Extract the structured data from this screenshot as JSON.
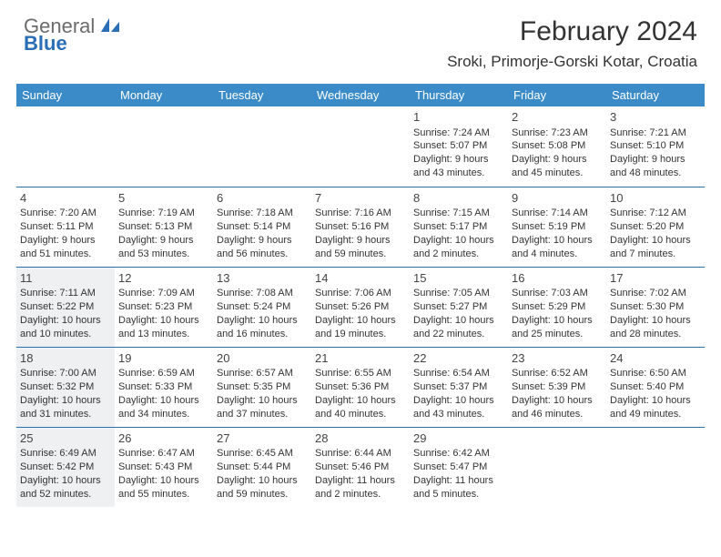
{
  "brand": {
    "part1": "General",
    "part2": "Blue"
  },
  "title": "February 2024",
  "location": "Sroki, Primorje-Gorski Kotar, Croatia",
  "colors": {
    "header_bg": "#3b8bc9",
    "header_text": "#ffffff",
    "border": "#2a6fb5",
    "shaded_bg": "#eef0f1",
    "body_text": "#333333",
    "logo_gray": "#6b6b6b",
    "logo_blue": "#2a6fb5"
  },
  "day_headers": [
    "Sunday",
    "Monday",
    "Tuesday",
    "Wednesday",
    "Thursday",
    "Friday",
    "Saturday"
  ],
  "weeks": [
    [
      {
        "blank": true
      },
      {
        "blank": true
      },
      {
        "blank": true
      },
      {
        "blank": true
      },
      {
        "day": "1",
        "sunrise": "Sunrise: 7:24 AM",
        "sunset": "Sunset: 5:07 PM",
        "dl1": "Daylight: 9 hours",
        "dl2": "and 43 minutes."
      },
      {
        "day": "2",
        "sunrise": "Sunrise: 7:23 AM",
        "sunset": "Sunset: 5:08 PM",
        "dl1": "Daylight: 9 hours",
        "dl2": "and 45 minutes."
      },
      {
        "day": "3",
        "sunrise": "Sunrise: 7:21 AM",
        "sunset": "Sunset: 5:10 PM",
        "dl1": "Daylight: 9 hours",
        "dl2": "and 48 minutes."
      }
    ],
    [
      {
        "day": "4",
        "sunrise": "Sunrise: 7:20 AM",
        "sunset": "Sunset: 5:11 PM",
        "dl1": "Daylight: 9 hours",
        "dl2": "and 51 minutes."
      },
      {
        "day": "5",
        "sunrise": "Sunrise: 7:19 AM",
        "sunset": "Sunset: 5:13 PM",
        "dl1": "Daylight: 9 hours",
        "dl2": "and 53 minutes."
      },
      {
        "day": "6",
        "sunrise": "Sunrise: 7:18 AM",
        "sunset": "Sunset: 5:14 PM",
        "dl1": "Daylight: 9 hours",
        "dl2": "and 56 minutes."
      },
      {
        "day": "7",
        "sunrise": "Sunrise: 7:16 AM",
        "sunset": "Sunset: 5:16 PM",
        "dl1": "Daylight: 9 hours",
        "dl2": "and 59 minutes."
      },
      {
        "day": "8",
        "sunrise": "Sunrise: 7:15 AM",
        "sunset": "Sunset: 5:17 PM",
        "dl1": "Daylight: 10 hours",
        "dl2": "and 2 minutes."
      },
      {
        "day": "9",
        "sunrise": "Sunrise: 7:14 AM",
        "sunset": "Sunset: 5:19 PM",
        "dl1": "Daylight: 10 hours",
        "dl2": "and 4 minutes."
      },
      {
        "day": "10",
        "sunrise": "Sunrise: 7:12 AM",
        "sunset": "Sunset: 5:20 PM",
        "dl1": "Daylight: 10 hours",
        "dl2": "and 7 minutes."
      }
    ],
    [
      {
        "day": "11",
        "shaded": true,
        "sunrise": "Sunrise: 7:11 AM",
        "sunset": "Sunset: 5:22 PM",
        "dl1": "Daylight: 10 hours",
        "dl2": "and 10 minutes."
      },
      {
        "day": "12",
        "sunrise": "Sunrise: 7:09 AM",
        "sunset": "Sunset: 5:23 PM",
        "dl1": "Daylight: 10 hours",
        "dl2": "and 13 minutes."
      },
      {
        "day": "13",
        "sunrise": "Sunrise: 7:08 AM",
        "sunset": "Sunset: 5:24 PM",
        "dl1": "Daylight: 10 hours",
        "dl2": "and 16 minutes."
      },
      {
        "day": "14",
        "sunrise": "Sunrise: 7:06 AM",
        "sunset": "Sunset: 5:26 PM",
        "dl1": "Daylight: 10 hours",
        "dl2": "and 19 minutes."
      },
      {
        "day": "15",
        "sunrise": "Sunrise: 7:05 AM",
        "sunset": "Sunset: 5:27 PM",
        "dl1": "Daylight: 10 hours",
        "dl2": "and 22 minutes."
      },
      {
        "day": "16",
        "sunrise": "Sunrise: 7:03 AM",
        "sunset": "Sunset: 5:29 PM",
        "dl1": "Daylight: 10 hours",
        "dl2": "and 25 minutes."
      },
      {
        "day": "17",
        "sunrise": "Sunrise: 7:02 AM",
        "sunset": "Sunset: 5:30 PM",
        "dl1": "Daylight: 10 hours",
        "dl2": "and 28 minutes."
      }
    ],
    [
      {
        "day": "18",
        "shaded": true,
        "sunrise": "Sunrise: 7:00 AM",
        "sunset": "Sunset: 5:32 PM",
        "dl1": "Daylight: 10 hours",
        "dl2": "and 31 minutes."
      },
      {
        "day": "19",
        "sunrise": "Sunrise: 6:59 AM",
        "sunset": "Sunset: 5:33 PM",
        "dl1": "Daylight: 10 hours",
        "dl2": "and 34 minutes."
      },
      {
        "day": "20",
        "sunrise": "Sunrise: 6:57 AM",
        "sunset": "Sunset: 5:35 PM",
        "dl1": "Daylight: 10 hours",
        "dl2": "and 37 minutes."
      },
      {
        "day": "21",
        "sunrise": "Sunrise: 6:55 AM",
        "sunset": "Sunset: 5:36 PM",
        "dl1": "Daylight: 10 hours",
        "dl2": "and 40 minutes."
      },
      {
        "day": "22",
        "sunrise": "Sunrise: 6:54 AM",
        "sunset": "Sunset: 5:37 PM",
        "dl1": "Daylight: 10 hours",
        "dl2": "and 43 minutes."
      },
      {
        "day": "23",
        "sunrise": "Sunrise: 6:52 AM",
        "sunset": "Sunset: 5:39 PM",
        "dl1": "Daylight: 10 hours",
        "dl2": "and 46 minutes."
      },
      {
        "day": "24",
        "sunrise": "Sunrise: 6:50 AM",
        "sunset": "Sunset: 5:40 PM",
        "dl1": "Daylight: 10 hours",
        "dl2": "and 49 minutes."
      }
    ],
    [
      {
        "day": "25",
        "shaded": true,
        "sunrise": "Sunrise: 6:49 AM",
        "sunset": "Sunset: 5:42 PM",
        "dl1": "Daylight: 10 hours",
        "dl2": "and 52 minutes."
      },
      {
        "day": "26",
        "sunrise": "Sunrise: 6:47 AM",
        "sunset": "Sunset: 5:43 PM",
        "dl1": "Daylight: 10 hours",
        "dl2": "and 55 minutes."
      },
      {
        "day": "27",
        "sunrise": "Sunrise: 6:45 AM",
        "sunset": "Sunset: 5:44 PM",
        "dl1": "Daylight: 10 hours",
        "dl2": "and 59 minutes."
      },
      {
        "day": "28",
        "sunrise": "Sunrise: 6:44 AM",
        "sunset": "Sunset: 5:46 PM",
        "dl1": "Daylight: 11 hours",
        "dl2": "and 2 minutes."
      },
      {
        "day": "29",
        "sunrise": "Sunrise: 6:42 AM",
        "sunset": "Sunset: 5:47 PM",
        "dl1": "Daylight: 11 hours",
        "dl2": "and 5 minutes."
      },
      {
        "blank": true
      },
      {
        "blank": true
      }
    ]
  ]
}
